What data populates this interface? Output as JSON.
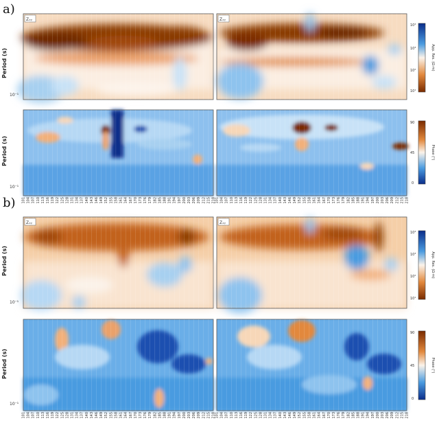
{
  "figure": {
    "parts": [
      {
        "label": "a)",
        "panels": [
          {
            "row": "apparent-resistivity",
            "ylabel": "Period (s)",
            "tick_labels": [
              "10⁻¹"
            ],
            "colorbar": {
              "label": "App. Res. (Ω·m)",
              "tick_labels": [
                "10⁴",
                "10³",
                "10²",
                "10¹"
              ]
            },
            "legend_text": "Zₓᵧ"
          },
          {
            "row": "phase",
            "ylabel": "Period (s)",
            "tick_labels": [
              "10⁻¹"
            ],
            "colorbar": {
              "label": "Phase (°)",
              "tick_labels": [
                "90",
                "45",
                "0"
              ]
            },
            "legend_text": ""
          }
        ]
      },
      {
        "label": "b)",
        "panels": [
          {
            "row": "apparent-resistivity",
            "ylabel": "Period (s)",
            "tick_labels": [
              "10⁻¹"
            ],
            "colorbar": {
              "label": "App. Res. (Ω·m)",
              "tick_labels": [
                "10⁴",
                "10³",
                "10²",
                "10¹"
              ]
            },
            "legend_text": "Zₓᵧ"
          },
          {
            "row": "phase",
            "ylabel": "Period (s)",
            "tick_labels": [
              "10⁻¹"
            ],
            "colorbar": {
              "label": "Phase (°)",
              "tick_labels": [
                "90",
                "45",
                "0"
              ]
            },
            "legend_text": ""
          }
        ]
      }
    ]
  },
  "chart_data": {
    "type": "heatmap",
    "description_note": "",
    "station_labels_a": [
      "101",
      "104",
      "107",
      "110",
      "113",
      "116",
      "119",
      "122",
      "125",
      "128",
      "131",
      "134",
      "137",
      "140",
      "143",
      "146",
      "149",
      "152",
      "155",
      "158",
      "161",
      "164",
      "167",
      "170",
      "173",
      "176",
      "179",
      "182",
      "185",
      "188",
      "191",
      "194",
      "197",
      "200",
      "203",
      "206",
      "209",
      "212",
      "215",
      "218"
    ],
    "station_labels_b": [
      "101",
      "104",
      "107",
      "110",
      "113",
      "116",
      "119",
      "122",
      "125",
      "128",
      "131",
      "134",
      "137",
      "140",
      "143",
      "146",
      "149",
      "152",
      "155",
      "158",
      "161",
      "164",
      "167",
      "170",
      "173",
      "176",
      "179",
      "182",
      "185",
      "188",
      "191",
      "194",
      "197",
      "200",
      "203",
      "206",
      "209",
      "212",
      "215",
      "218"
    ],
    "colors": {
      "low_res": "#0a2d8a",
      "mid_res": "#ffffff",
      "high_res": "#7a2b00",
      "phase_low": "#0a2d8a",
      "phase_high": "#7a2b00"
    }
  }
}
